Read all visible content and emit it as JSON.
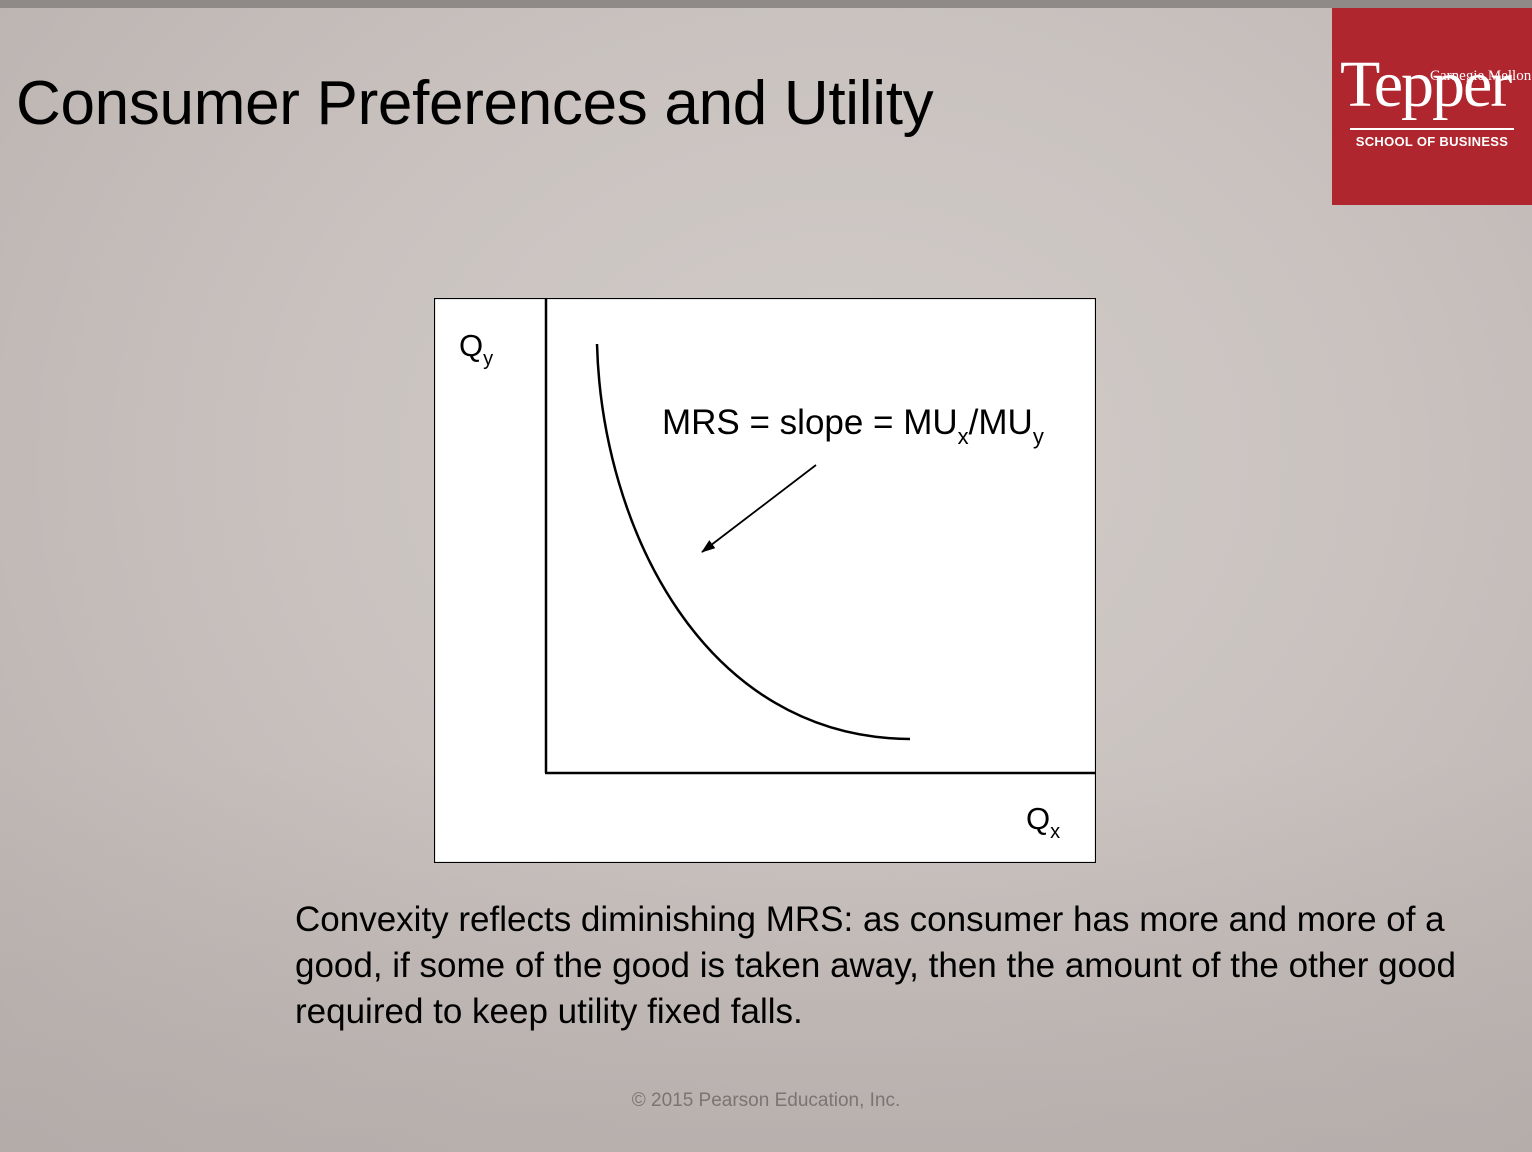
{
  "slide": {
    "title": "Consumer Preferences and Utility",
    "caption": "Convexity reflects diminishing MRS: as consumer has more and more of a good, if some of the good is taken away, then the amount of the other good required to keep utility fixed falls.",
    "copyright": "© 2015 Pearson Education, Inc."
  },
  "logo": {
    "top_line": "Carnegie Mellon",
    "name": "Tepper",
    "school": "SCHOOL OF BUSINESS",
    "color": "#b0262f"
  },
  "diagram": {
    "y_axis": {
      "base": "Q",
      "sub": "y"
    },
    "x_axis": {
      "base": "Q",
      "sub": "x"
    },
    "annotation": {
      "prefix": "MRS = slope = MU",
      "sub1": "x",
      "middle": "/MU",
      "sub2": "y"
    }
  }
}
